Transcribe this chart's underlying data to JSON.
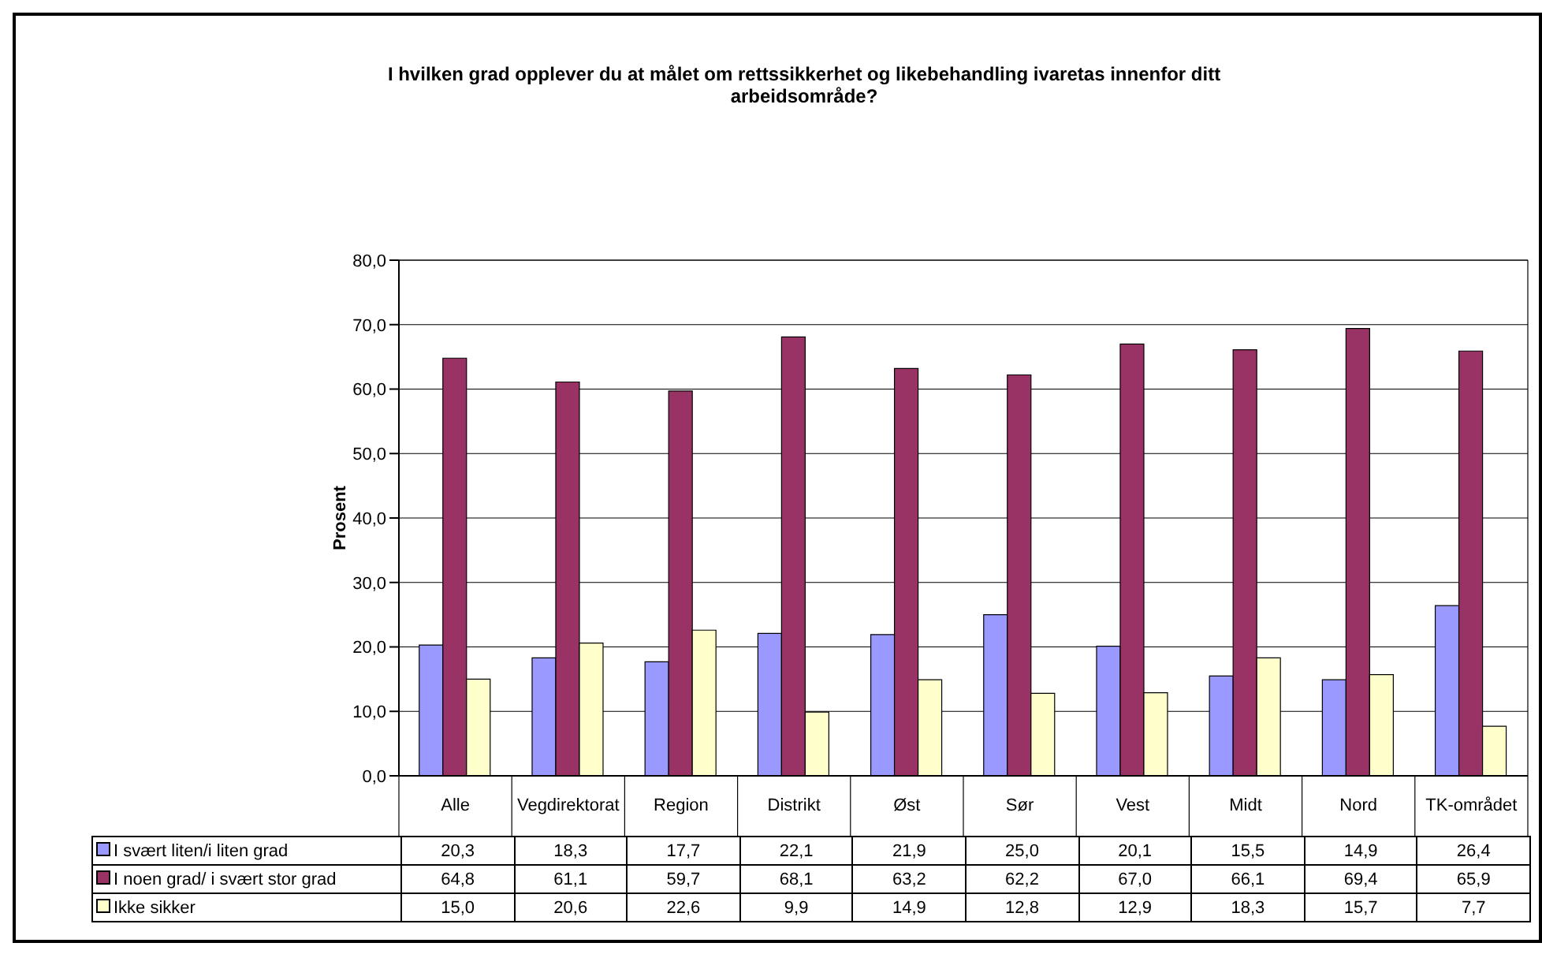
{
  "chart_data": {
    "type": "bar",
    "title": "I hvilken grad opplever du at målet om rettssikkerhet og likebehandling ivaretas innenfor ditt arbeidsområde?",
    "ylabel": "Prosent",
    "categories": [
      "Alle",
      "Vegdirektorat",
      "Region",
      "Distrikt",
      "Øst",
      "Sør",
      "Vest",
      "Midt",
      "Nord",
      "TK-området"
    ],
    "series": [
      {
        "name": "I svært liten/i liten grad",
        "color": "#9999ff",
        "values": [
          20.3,
          18.3,
          17.7,
          22.1,
          21.9,
          25.0,
          20.1,
          15.5,
          14.9,
          26.4
        ],
        "value_labels": [
          "20,3",
          "18,3",
          "17,7",
          "22,1",
          "21,9",
          "25,0",
          "20,1",
          "15,5",
          "14,9",
          "26,4"
        ]
      },
      {
        "name": "I noen grad/ i svært stor grad",
        "color": "#993366",
        "values": [
          64.8,
          61.1,
          59.7,
          68.1,
          63.2,
          62.2,
          67.0,
          66.1,
          69.4,
          65.9
        ],
        "value_labels": [
          "64,8",
          "61,1",
          "59,7",
          "68,1",
          "63,2",
          "62,2",
          "67,0",
          "66,1",
          "69,4",
          "65,9"
        ]
      },
      {
        "name": "Ikke sikker",
        "color": "#ffffcc",
        "values": [
          15.0,
          20.6,
          22.6,
          9.9,
          14.9,
          12.8,
          12.9,
          18.3,
          15.7,
          7.7
        ],
        "value_labels": [
          "15,0",
          "20,6",
          "22,6",
          "9,9",
          "14,9",
          "12,8",
          "12,9",
          "18,3",
          "15,7",
          "7,7"
        ]
      }
    ],
    "ylim": [
      0,
      80
    ],
    "yticks": [
      {
        "value": 0,
        "label": "0,0"
      },
      {
        "value": 10,
        "label": "10,0"
      },
      {
        "value": 20,
        "label": "20,0"
      },
      {
        "value": 30,
        "label": "30,0"
      },
      {
        "value": 40,
        "label": "40,0"
      },
      {
        "value": 50,
        "label": "50,0"
      },
      {
        "value": 60,
        "label": "60,0"
      },
      {
        "value": 70,
        "label": "70,0"
      },
      {
        "value": 80,
        "label": "80,0"
      }
    ],
    "grid": "y",
    "legend": "bottom"
  }
}
